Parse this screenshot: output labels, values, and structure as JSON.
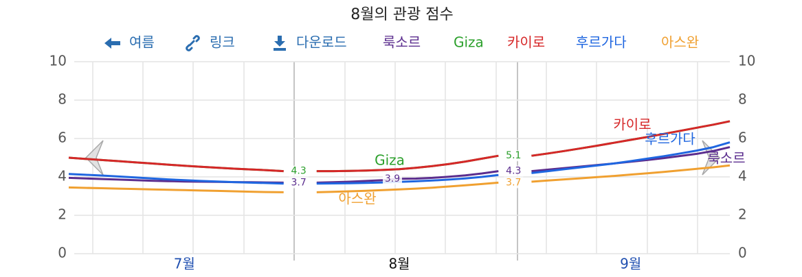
{
  "toolbar": [
    "여름",
    "링크",
    "다운로드"
  ],
  "chart_data": {
    "type": "line",
    "title": "8월의 관광 점수",
    "categories": [
      null,
      null,
      null,
      null,
      null,
      null,
      null,
      "7월",
      null,
      null,
      null,
      null,
      null,
      null,
      null,
      null,
      null,
      null,
      null,
      null,
      "8월",
      null,
      null,
      null,
      null,
      null,
      null,
      null,
      null,
      null,
      null,
      null,
      null,
      null,
      "9월",
      null,
      null,
      null,
      null,
      null,
      null
    ],
    "series": [
      {
        "name": "룩소르",
        "color": "#5b2d8e",
        "labels_at": [
          13,
          20,
          26
        ],
        "values": [
          3.95,
          3.92,
          3.89,
          3.86,
          3.83,
          3.8,
          3.78,
          3.76,
          3.75,
          3.74,
          3.73,
          3.72,
          3.71,
          3.7,
          null,
          3.7,
          3.72,
          3.75,
          3.79,
          3.83,
          3.9,
          3.91,
          3.95,
          4.01,
          4.08,
          4.18,
          4.3,
          null,
          4.3,
          4.38,
          4.46,
          4.54,
          4.62,
          4.7,
          4.79,
          4.88,
          4.98,
          5.09,
          5.2,
          5.35,
          5.55
        ]
      },
      {
        "name": "Giza",
        "color": "#2ca02c",
        "labels_at": [
          13,
          26
        ],
        "values": [
          5.0,
          4.94,
          4.88,
          4.82,
          4.76,
          4.7,
          4.64,
          4.58,
          4.53,
          4.48,
          4.43,
          4.39,
          4.35,
          4.3,
          null,
          4.3,
          4.3,
          4.31,
          4.33,
          4.36,
          4.4,
          4.47,
          4.56,
          4.67,
          4.8,
          4.95,
          5.1,
          null,
          5.1,
          5.22,
          5.35,
          5.49,
          5.63,
          5.78,
          5.93,
          6.08,
          6.24,
          6.4,
          6.56,
          6.72,
          6.9
        ]
      },
      {
        "name": "카이로",
        "color": "#d62728",
        "labels_at": [],
        "values": [
          5.0,
          4.94,
          4.88,
          4.82,
          4.76,
          4.7,
          4.64,
          4.58,
          4.53,
          4.48,
          4.43,
          4.39,
          4.35,
          4.3,
          null,
          4.3,
          4.3,
          4.31,
          4.33,
          4.36,
          4.4,
          4.47,
          4.56,
          4.67,
          4.8,
          4.95,
          5.1,
          null,
          5.1,
          5.22,
          5.35,
          5.49,
          5.63,
          5.78,
          5.93,
          6.08,
          6.24,
          6.4,
          6.56,
          6.72,
          6.9
        ]
      },
      {
        "name": "후르가다",
        "color": "#1f66e0",
        "labels_at": [],
        "values": [
          4.15,
          4.11,
          4.07,
          4.02,
          3.97,
          3.92,
          3.87,
          3.83,
          3.79,
          3.76,
          3.73,
          3.7,
          3.68,
          3.65,
          null,
          3.65,
          3.66,
          3.67,
          3.69,
          3.71,
          3.74,
          3.77,
          3.81,
          3.86,
          3.92,
          4.0,
          4.1,
          null,
          4.2,
          4.3,
          4.4,
          4.5,
          4.6,
          4.7,
          4.82,
          4.95,
          5.08,
          5.22,
          5.37,
          5.55,
          5.8
        ]
      },
      {
        "name": "아스완",
        "color": "#f0a030",
        "labels_at": [
          26
        ],
        "values": [
          3.45,
          3.43,
          3.41,
          3.39,
          3.37,
          3.35,
          3.33,
          3.31,
          3.29,
          3.27,
          3.25,
          3.23,
          3.21,
          3.2,
          null,
          3.2,
          3.22,
          3.25,
          3.28,
          3.31,
          3.35,
          3.39,
          3.44,
          3.5,
          3.56,
          3.63,
          3.7,
          null,
          3.75,
          3.81,
          3.87,
          3.93,
          3.99,
          4.05,
          4.12,
          4.19,
          4.26,
          4.34,
          4.42,
          4.5,
          4.6
        ]
      }
    ],
    "ylim": [
      0,
      10
    ],
    "yticks": [
      0,
      2,
      4,
      6,
      8,
      10
    ],
    "grid": true
  }
}
